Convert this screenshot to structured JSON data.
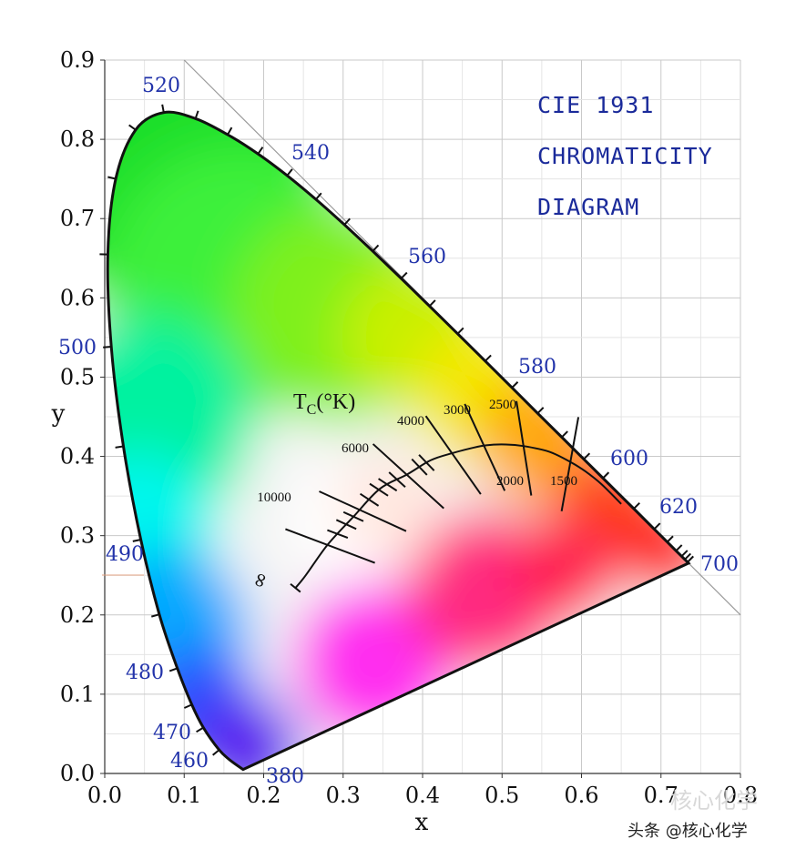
{
  "chart_data": {
    "type": "chromaticity-diagram",
    "title_lines": [
      "CIE 1931",
      "CHROMATICITY",
      "DIAGRAM"
    ],
    "xlabel": "x",
    "ylabel": "y",
    "xlim": [
      0.0,
      0.8
    ],
    "ylim": [
      0.0,
      0.9
    ],
    "x_ticks": [
      "0.0",
      "0.1",
      "0.2",
      "0.3",
      "0.4",
      "0.5",
      "0.6",
      "0.7",
      "0.8"
    ],
    "y_ticks": [
      "0.0",
      "0.1",
      "0.2",
      "0.3",
      "0.4",
      "0.5",
      "0.6",
      "0.7",
      "0.8",
      "0.9"
    ],
    "grid": true,
    "spectral_locus": [
      {
        "nm": 380,
        "x": 0.1741,
        "y": 0.005
      },
      {
        "nm": 450,
        "x": 0.1566,
        "y": 0.0177
      },
      {
        "nm": 460,
        "x": 0.144,
        "y": 0.0297
      },
      {
        "nm": 470,
        "x": 0.1241,
        "y": 0.0578
      },
      {
        "nm": 475,
        "x": 0.1096,
        "y": 0.0868
      },
      {
        "nm": 480,
        "x": 0.0913,
        "y": 0.1327
      },
      {
        "nm": 485,
        "x": 0.0687,
        "y": 0.2007
      },
      {
        "nm": 490,
        "x": 0.0454,
        "y": 0.295
      },
      {
        "nm": 495,
        "x": 0.0235,
        "y": 0.4127
      },
      {
        "nm": 500,
        "x": 0.0082,
        "y": 0.5384
      },
      {
        "nm": 505,
        "x": 0.0039,
        "y": 0.6548
      },
      {
        "nm": 510,
        "x": 0.0139,
        "y": 0.7502
      },
      {
        "nm": 515,
        "x": 0.0389,
        "y": 0.812
      },
      {
        "nm": 520,
        "x": 0.0743,
        "y": 0.8338
      },
      {
        "nm": 525,
        "x": 0.1142,
        "y": 0.8262
      },
      {
        "nm": 530,
        "x": 0.1547,
        "y": 0.8059
      },
      {
        "nm": 535,
        "x": 0.1929,
        "y": 0.7816
      },
      {
        "nm": 540,
        "x": 0.2296,
        "y": 0.7543
      },
      {
        "nm": 545,
        "x": 0.2658,
        "y": 0.7243
      },
      {
        "nm": 550,
        "x": 0.3016,
        "y": 0.6923
      },
      {
        "nm": 555,
        "x": 0.3373,
        "y": 0.6589
      },
      {
        "nm": 560,
        "x": 0.3731,
        "y": 0.6245
      },
      {
        "nm": 565,
        "x": 0.4087,
        "y": 0.5896
      },
      {
        "nm": 570,
        "x": 0.4441,
        "y": 0.5547
      },
      {
        "nm": 575,
        "x": 0.4788,
        "y": 0.5202
      },
      {
        "nm": 580,
        "x": 0.5125,
        "y": 0.4866
      },
      {
        "nm": 585,
        "x": 0.5448,
        "y": 0.4544
      },
      {
        "nm": 590,
        "x": 0.5752,
        "y": 0.4242
      },
      {
        "nm": 595,
        "x": 0.6029,
        "y": 0.3965
      },
      {
        "nm": 600,
        "x": 0.627,
        "y": 0.3725
      },
      {
        "nm": 610,
        "x": 0.6658,
        "y": 0.334
      },
      {
        "nm": 620,
        "x": 0.6915,
        "y": 0.3083
      },
      {
        "nm": 630,
        "x": 0.7079,
        "y": 0.292
      },
      {
        "nm": 640,
        "x": 0.719,
        "y": 0.2809
      },
      {
        "nm": 650,
        "x": 0.726,
        "y": 0.274
      },
      {
        "nm": 660,
        "x": 0.73,
        "y": 0.27
      },
      {
        "nm": 680,
        "x": 0.7334,
        "y": 0.2666
      },
      {
        "nm": 700,
        "x": 0.7347,
        "y": 0.2653
      }
    ],
    "wavelength_labels": [
      {
        "text": "380",
        "nm": 380
      },
      {
        "text": "460",
        "nm": 460
      },
      {
        "text": "470",
        "nm": 470
      },
      {
        "text": "480",
        "nm": 480
      },
      {
        "text": "490",
        "nm": 490
      },
      {
        "text": "500",
        "nm": 500
      },
      {
        "text": "520",
        "nm": 520
      },
      {
        "text": "540",
        "nm": 540
      },
      {
        "text": "560",
        "nm": 560
      },
      {
        "text": "580",
        "nm": 580
      },
      {
        "text": "600",
        "nm": 600
      },
      {
        "text": "620",
        "nm": 620
      },
      {
        "text": "700",
        "nm": 700
      }
    ],
    "planckian_locus": {
      "label": "T",
      "label_sub": "C",
      "label_unit": "(°K)",
      "infinity_label": "∞",
      "points": [
        {
          "x": 0.24,
          "y": 0.234
        },
        {
          "x": 0.253,
          "y": 0.25
        },
        {
          "x": 0.28,
          "y": 0.288
        },
        {
          "x": 0.313,
          "y": 0.324
        },
        {
          "x": 0.346,
          "y": 0.359
        },
        {
          "x": 0.38,
          "y": 0.377
        },
        {
          "x": 0.41,
          "y": 0.395
        },
        {
          "x": 0.437,
          "y": 0.404
        },
        {
          "x": 0.46,
          "y": 0.41
        },
        {
          "x": 0.48,
          "y": 0.414
        },
        {
          "x": 0.505,
          "y": 0.415
        },
        {
          "x": 0.527,
          "y": 0.413
        },
        {
          "x": 0.559,
          "y": 0.406
        },
        {
          "x": 0.586,
          "y": 0.393
        },
        {
          "x": 0.605,
          "y": 0.381
        },
        {
          "x": 0.625,
          "y": 0.365
        },
        {
          "x": 0.65,
          "y": 0.34
        }
      ],
      "isotherms": [
        {
          "T": "10000",
          "x": 0.281,
          "y": 0.288
        },
        {
          "T": "6000",
          "x": 0.322,
          "y": 0.332
        },
        {
          "T": "4000",
          "x": 0.38,
          "y": 0.377
        },
        {
          "T": "3000",
          "x": 0.437,
          "y": 0.404
        },
        {
          "T": "2500",
          "x": 0.477,
          "y": 0.414
        },
        {
          "T": "2000",
          "x": 0.527,
          "y": 0.413
        },
        {
          "T": "1500",
          "x": 0.586,
          "y": 0.393
        }
      ],
      "minor_isotherm_x": [
        0.293,
        0.304,
        0.313,
        0.333,
        0.345,
        0.356,
        0.368,
        0.396,
        0.405
      ]
    }
  },
  "watermark": {
    "faint": "核心化学",
    "text": "头条 @核心化学"
  }
}
